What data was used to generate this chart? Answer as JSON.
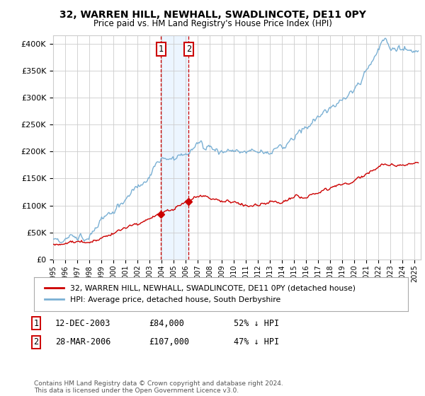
{
  "title": "32, WARREN HILL, NEWHALL, SWADLINCOTE, DE11 0PY",
  "subtitle": "Price paid vs. HM Land Registry's House Price Index (HPI)",
  "ylabel_ticks": [
    "£0",
    "£50K",
    "£100K",
    "£150K",
    "£200K",
    "£250K",
    "£300K",
    "£350K",
    "£400K"
  ],
  "ytick_values": [
    0,
    50000,
    100000,
    150000,
    200000,
    250000,
    300000,
    350000,
    400000
  ],
  "ylim": [
    0,
    415000
  ],
  "xlim_start": 1995.0,
  "xlim_end": 2025.5,
  "transaction1_date": 2003.95,
  "transaction1_price": 84000,
  "transaction2_date": 2006.24,
  "transaction2_price": 107000,
  "line_color_property": "#cc0000",
  "line_color_hpi": "#7ab0d4",
  "legend_label_property": "32, WARREN HILL, NEWHALL, SWADLINCOTE, DE11 0PY (detached house)",
  "legend_label_hpi": "HPI: Average price, detached house, South Derbyshire",
  "table_row1": [
    "1",
    "12-DEC-2003",
    "£84,000",
    "52% ↓ HPI"
  ],
  "table_row2": [
    "2",
    "28-MAR-2006",
    "£107,000",
    "47% ↓ HPI"
  ],
  "footer": "Contains HM Land Registry data © Crown copyright and database right 2024.\nThis data is licensed under the Open Government Licence v3.0.",
  "background_color": "#ffffff",
  "grid_color": "#cccccc",
  "shade_color": "#ddeeff"
}
